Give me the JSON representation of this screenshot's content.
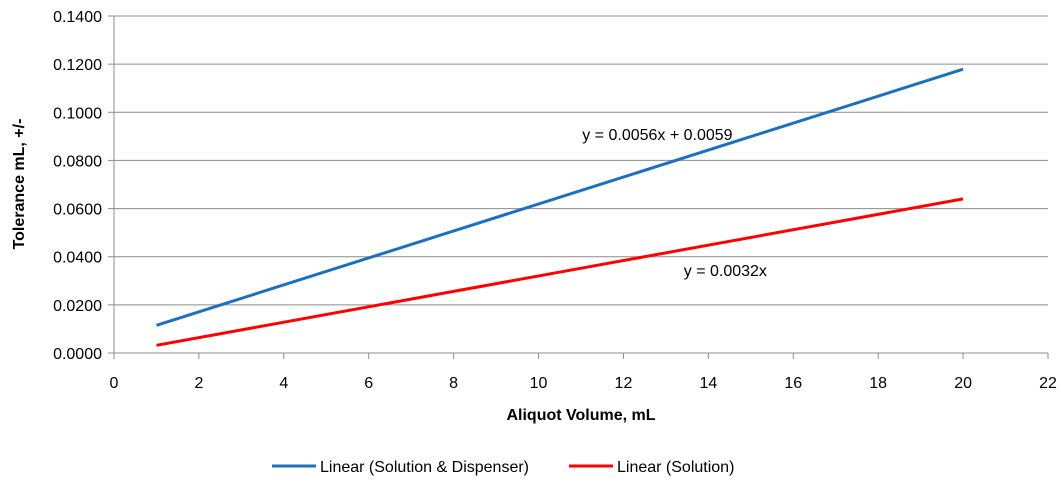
{
  "chart_data": {
    "type": "line",
    "title": "",
    "xlabel": "Aliquot Volume, mL",
    "ylabel": "Tolerance mL, +/-",
    "xlim": [
      0,
      22
    ],
    "ylim": [
      0,
      0.14
    ],
    "x_ticks": [
      "0",
      "2",
      "4",
      "6",
      "8",
      "10",
      "12",
      "14",
      "16",
      "18",
      "20",
      "22"
    ],
    "y_ticks": [
      "0.0000",
      "0.0200",
      "0.0400",
      "0.0600",
      "0.0800",
      "0.1000",
      "0.1200",
      "0.1400"
    ],
    "grid": "horizontal",
    "legend_position": "bottom",
    "series": [
      {
        "name": "Linear (Solution & Dispenser)",
        "color": "#1F6FBF",
        "x": [
          1,
          20
        ],
        "y": [
          0.0115,
          0.1179
        ]
      },
      {
        "name": "Linear (Solution)",
        "color": "#FF0000",
        "x": [
          1,
          20
        ],
        "y": [
          0.0032,
          0.064
        ]
      }
    ],
    "annotations": [
      {
        "text": "y = 0.0056x + 0.0059",
        "x": 12.8,
        "y": 0.0885
      },
      {
        "text": "y = 0.0032x",
        "x": 14.4,
        "y": 0.032
      }
    ]
  }
}
